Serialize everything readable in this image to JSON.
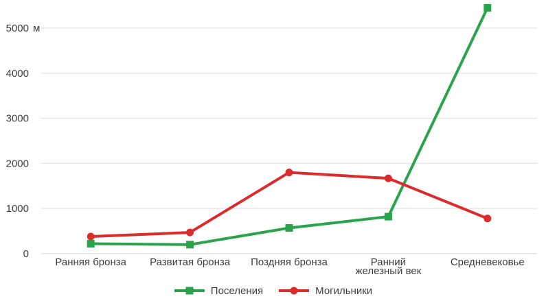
{
  "chart_data": {
    "type": "line",
    "title": "",
    "xlabel": "",
    "ylabel": "",
    "categories": [
      "Ранняя бронза",
      "Развитая бронза",
      "Поздняя бронза",
      "Ранний железный век",
      "Средневековье"
    ],
    "series": [
      {
        "name": "Поселения",
        "values": [
          220,
          200,
          570,
          820,
          5450
        ],
        "color": "#2aa44c",
        "marker": "square"
      },
      {
        "name": "Могильники",
        "values": [
          380,
          470,
          1800,
          1670,
          780
        ],
        "color": "#dc2b2b",
        "marker": "circle"
      }
    ],
    "ylim": [
      0,
      5000
    ],
    "ytick_interval": 1000,
    "ytick_labels": [
      "0",
      "1000",
      "2000",
      "3000",
      "4000",
      "5000"
    ],
    "y_axis_unit": "м",
    "grid": true,
    "legend_position": "bottom"
  },
  "colors": {
    "background": "#ffffff",
    "gridline": "#e4e4e4",
    "axis_baseline": "#d9d9d9",
    "text": "#3d3d3d"
  }
}
